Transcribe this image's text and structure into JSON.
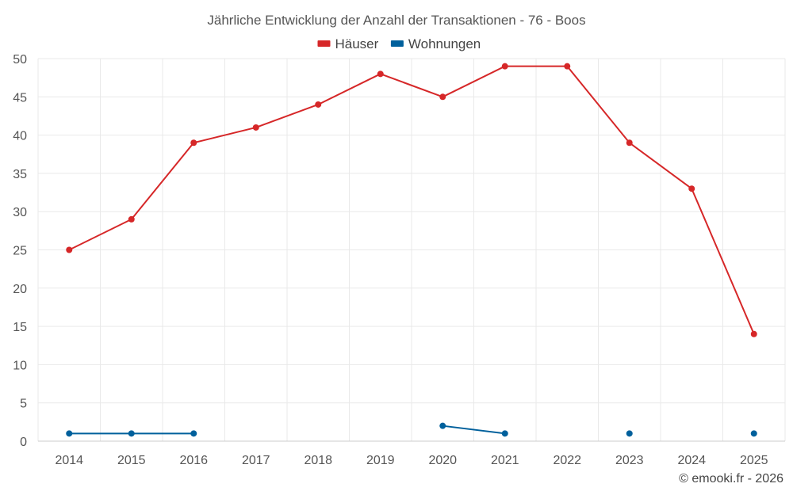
{
  "chart_data": {
    "type": "line",
    "title": "Jährliche Entwicklung der Anzahl der Transaktionen - 76 - Boos",
    "categories": [
      "2014",
      "2015",
      "2016",
      "2017",
      "2018",
      "2019",
      "2020",
      "2021",
      "2022",
      "2023",
      "2024",
      "2025"
    ],
    "ylim": [
      0,
      50
    ],
    "yticks": [
      0,
      5,
      10,
      15,
      20,
      25,
      30,
      35,
      40,
      45,
      50
    ],
    "grid": true,
    "legend_position": "top-center",
    "series": [
      {
        "name": "Häuser",
        "color": "#d62728",
        "values": [
          25,
          29,
          39,
          41,
          44,
          48,
          45,
          49,
          49,
          39,
          33,
          14
        ]
      },
      {
        "name": "Wohnungen",
        "color": "#00609c",
        "values": [
          1,
          1,
          1,
          null,
          null,
          null,
          2,
          1,
          null,
          1,
          null,
          1
        ]
      }
    ],
    "credit": "© emooki.fr - 2026"
  }
}
